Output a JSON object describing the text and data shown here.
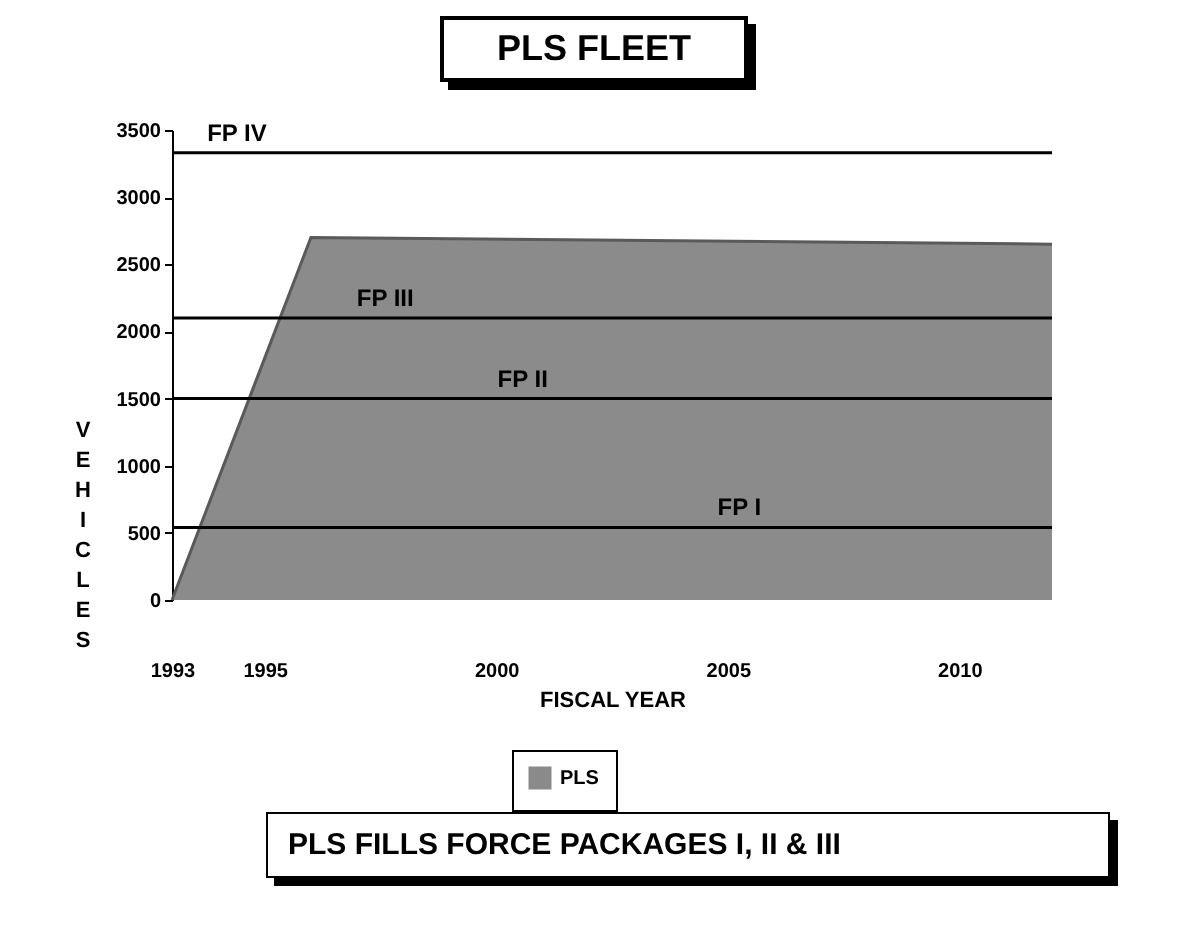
{
  "chart_data": {
    "type": "area",
    "title": "PLS FLEET",
    "xlabel": "FISCAL YEAR",
    "ylabel": "VEHICLES",
    "x": [
      1993,
      1996,
      2012
    ],
    "series": [
      {
        "name": "PLS",
        "color": "#5a5a5a",
        "values": [
          0,
          2700,
          2650
        ]
      }
    ],
    "xlim": [
      1993,
      2012
    ],
    "xticks": [
      1993,
      1995,
      2000,
      2005,
      2010
    ],
    "ylim": [
      0,
      3500
    ],
    "yticks": [
      0,
      500,
      1000,
      1500,
      2000,
      2500,
      3000,
      3500
    ],
    "ref_lines": [
      {
        "axis": "y",
        "value": 540,
        "label": "FP I"
      },
      {
        "axis": "y",
        "value": 1500,
        "label": "FP II"
      },
      {
        "axis": "y",
        "value": 2100,
        "label": "FP III"
      },
      {
        "axis": "y",
        "value": 3330,
        "label": "FP IV"
      }
    ],
    "legend": "bottom",
    "grid": false,
    "annotations": [
      "PLS FILLS FORCE PACKAGES I, II & III"
    ]
  }
}
